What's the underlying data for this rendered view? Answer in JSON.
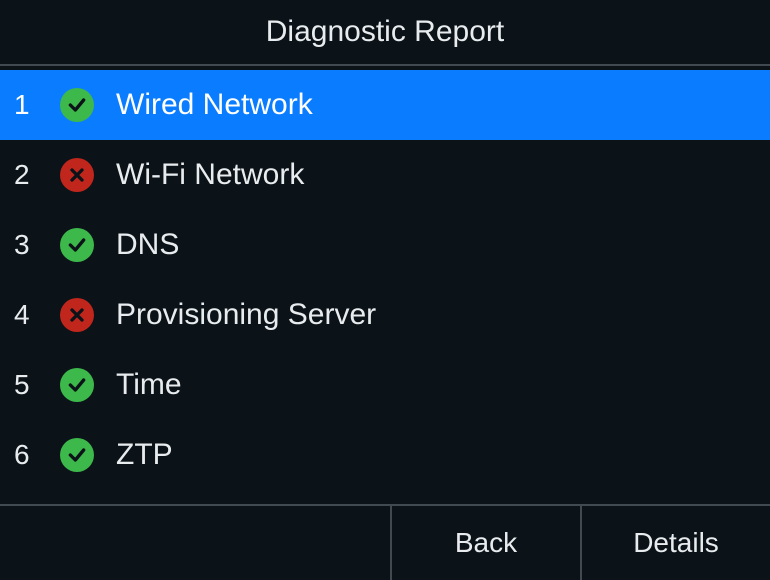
{
  "colors": {
    "background": "#0b1318",
    "text": "#e8ecef",
    "divider": "#414a50",
    "selected_bg": "#0a7cff",
    "success_bg": "#3db84b",
    "success_glyph": "#0b1318",
    "error_bg": "#c0261c",
    "error_glyph": "#0b1318"
  },
  "title": "Diagnostic Report",
  "items": [
    {
      "index": "1",
      "status": "success",
      "label": "Wired Network",
      "selected": true
    },
    {
      "index": "2",
      "status": "error",
      "label": "Wi-Fi Network",
      "selected": false
    },
    {
      "index": "3",
      "status": "success",
      "label": "DNS",
      "selected": false
    },
    {
      "index": "4",
      "status": "error",
      "label": "Provisioning Server",
      "selected": false
    },
    {
      "index": "5",
      "status": "success",
      "label": "Time",
      "selected": false
    },
    {
      "index": "6",
      "status": "success",
      "label": "ZTP",
      "selected": false
    }
  ],
  "footer": {
    "back": "Back",
    "details": "Details"
  }
}
